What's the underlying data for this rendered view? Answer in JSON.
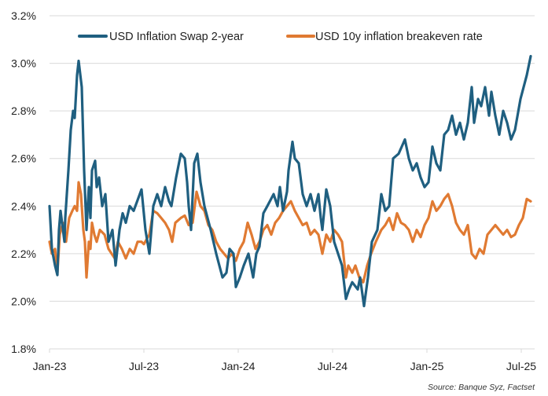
{
  "chart_data": {
    "type": "line",
    "title": "",
    "xlabel": "",
    "ylabel": "",
    "x_unit": "months since Jan-2023",
    "xlim": [
      0,
      31
    ],
    "ylim": [
      1.8,
      3.2
    ],
    "grid": "horizontal",
    "legend_position": "top",
    "yticks": [
      {
        "value": 1.8,
        "label": "1.8%"
      },
      {
        "value": 2.0,
        "label": "2.0%"
      },
      {
        "value": 2.2,
        "label": "2.2%"
      },
      {
        "value": 2.4,
        "label": "2.4%"
      },
      {
        "value": 2.6,
        "label": "2.6%"
      },
      {
        "value": 2.8,
        "label": "2.8%"
      },
      {
        "value": 3.0,
        "label": "3.0%"
      },
      {
        "value": 3.2,
        "label": "3.2%"
      }
    ],
    "xticks": [
      {
        "value": 0,
        "label": "Jan-23"
      },
      {
        "value": 6,
        "label": "Jul-23"
      },
      {
        "value": 12,
        "label": "Jan-24"
      },
      {
        "value": 18,
        "label": "Jul-24"
      },
      {
        "value": 24,
        "label": "Jan-25"
      },
      {
        "value": 30,
        "label": "Jul-25"
      }
    ],
    "series": [
      {
        "name": "USD Inflation Swap 2-year",
        "color": "#1f5f80",
        "points": [
          [
            0,
            2.4
          ],
          [
            0.15,
            2.22
          ],
          [
            0.35,
            2.15
          ],
          [
            0.5,
            2.11
          ],
          [
            0.6,
            2.3
          ],
          [
            0.7,
            2.38
          ],
          [
            0.95,
            2.25
          ],
          [
            1.0,
            2.35
          ],
          [
            1.2,
            2.55
          ],
          [
            1.35,
            2.72
          ],
          [
            1.5,
            2.8
          ],
          [
            1.6,
            2.77
          ],
          [
            1.75,
            2.95
          ],
          [
            1.85,
            3.01
          ],
          [
            2.05,
            2.9
          ],
          [
            2.2,
            2.55
          ],
          [
            2.35,
            2.3
          ],
          [
            2.5,
            2.48
          ],
          [
            2.6,
            2.35
          ],
          [
            2.7,
            2.55
          ],
          [
            2.9,
            2.59
          ],
          [
            3.0,
            2.48
          ],
          [
            3.15,
            2.52
          ],
          [
            3.35,
            2.4
          ],
          [
            3.55,
            2.45
          ],
          [
            3.75,
            2.25
          ],
          [
            4.0,
            2.3
          ],
          [
            4.2,
            2.15
          ],
          [
            4.45,
            2.3
          ],
          [
            4.65,
            2.37
          ],
          [
            4.85,
            2.33
          ],
          [
            5.1,
            2.4
          ],
          [
            5.35,
            2.38
          ],
          [
            5.85,
            2.47
          ],
          [
            6.1,
            2.3
          ],
          [
            6.35,
            2.2
          ],
          [
            6.6,
            2.4
          ],
          [
            6.85,
            2.45
          ],
          [
            7.1,
            2.4
          ],
          [
            7.35,
            2.48
          ],
          [
            7.6,
            2.42
          ],
          [
            7.75,
            2.4
          ],
          [
            8.05,
            2.52
          ],
          [
            8.35,
            2.62
          ],
          [
            8.6,
            2.6
          ],
          [
            8.75,
            2.5
          ],
          [
            8.85,
            2.4
          ],
          [
            9.0,
            2.3
          ],
          [
            9.2,
            2.58
          ],
          [
            9.4,
            2.62
          ],
          [
            9.6,
            2.5
          ],
          [
            9.85,
            2.4
          ],
          [
            10.25,
            2.3
          ],
          [
            10.6,
            2.2
          ],
          [
            11.0,
            2.1
          ],
          [
            11.25,
            2.12
          ],
          [
            11.45,
            2.22
          ],
          [
            11.7,
            2.2
          ],
          [
            11.85,
            2.06
          ],
          [
            12.1,
            2.1
          ],
          [
            12.35,
            2.15
          ],
          [
            12.65,
            2.2
          ],
          [
            12.95,
            2.1
          ],
          [
            13.15,
            2.2
          ],
          [
            13.35,
            2.23
          ],
          [
            13.6,
            2.37
          ],
          [
            13.85,
            2.4
          ],
          [
            14.25,
            2.45
          ],
          [
            14.5,
            2.4
          ],
          [
            14.65,
            2.48
          ],
          [
            14.85,
            2.38
          ],
          [
            15.1,
            2.46
          ],
          [
            15.2,
            2.55
          ],
          [
            15.45,
            2.67
          ],
          [
            15.6,
            2.6
          ],
          [
            15.85,
            2.58
          ],
          [
            16.1,
            2.45
          ],
          [
            16.35,
            2.4
          ],
          [
            16.6,
            2.45
          ],
          [
            16.85,
            2.38
          ],
          [
            17.1,
            2.45
          ],
          [
            17.25,
            2.35
          ],
          [
            17.35,
            2.3
          ],
          [
            17.6,
            2.47
          ],
          [
            17.85,
            2.4
          ],
          [
            18.1,
            2.25
          ],
          [
            18.35,
            2.2
          ],
          [
            18.6,
            2.15
          ],
          [
            18.85,
            2.01
          ],
          [
            19.05,
            2.05
          ],
          [
            19.25,
            2.08
          ],
          [
            19.6,
            2.05
          ],
          [
            19.75,
            2.1
          ],
          [
            20.0,
            1.98
          ],
          [
            20.25,
            2.1
          ],
          [
            20.5,
            2.25
          ],
          [
            20.85,
            2.3
          ],
          [
            21.1,
            2.45
          ],
          [
            21.35,
            2.38
          ],
          [
            21.6,
            2.4
          ],
          [
            21.85,
            2.6
          ],
          [
            22.2,
            2.62
          ],
          [
            22.6,
            2.68
          ],
          [
            22.85,
            2.6
          ],
          [
            23.1,
            2.55
          ],
          [
            23.35,
            2.58
          ],
          [
            23.6,
            2.52
          ],
          [
            23.85,
            2.48
          ],
          [
            24.1,
            2.5
          ],
          [
            24.35,
            2.65
          ],
          [
            24.6,
            2.58
          ],
          [
            24.85,
            2.55
          ],
          [
            25.1,
            2.7
          ],
          [
            25.35,
            2.72
          ],
          [
            25.6,
            2.78
          ],
          [
            25.85,
            2.7
          ],
          [
            26.1,
            2.75
          ],
          [
            26.35,
            2.68
          ],
          [
            26.6,
            2.75
          ],
          [
            26.85,
            2.9
          ],
          [
            27.0,
            2.75
          ],
          [
            27.25,
            2.85
          ],
          [
            27.45,
            2.82
          ],
          [
            27.7,
            2.9
          ],
          [
            27.95,
            2.78
          ],
          [
            28.1,
            2.88
          ],
          [
            28.35,
            2.78
          ],
          [
            28.6,
            2.7
          ],
          [
            28.85,
            2.8
          ],
          [
            29.1,
            2.75
          ],
          [
            29.35,
            2.68
          ],
          [
            29.6,
            2.72
          ],
          [
            29.95,
            2.85
          ],
          [
            30.35,
            2.95
          ],
          [
            30.6,
            3.03
          ]
        ]
      },
      {
        "name": "USD 10y inflation breakeven rate",
        "color": "#e07a32",
        "points": [
          [
            0,
            2.25
          ],
          [
            0.15,
            2.2
          ],
          [
            0.35,
            2.22
          ],
          [
            0.5,
            2.12
          ],
          [
            0.65,
            2.28
          ],
          [
            0.85,
            2.33
          ],
          [
            1.05,
            2.25
          ],
          [
            1.25,
            2.35
          ],
          [
            1.45,
            2.38
          ],
          [
            1.6,
            2.4
          ],
          [
            1.75,
            2.38
          ],
          [
            1.85,
            2.5
          ],
          [
            2.0,
            2.45
          ],
          [
            2.15,
            2.3
          ],
          [
            2.25,
            2.25
          ],
          [
            2.35,
            2.1
          ],
          [
            2.5,
            2.25
          ],
          [
            2.6,
            2.22
          ],
          [
            2.7,
            2.33
          ],
          [
            2.85,
            2.28
          ],
          [
            3.0,
            2.25
          ],
          [
            3.2,
            2.3
          ],
          [
            3.5,
            2.28
          ],
          [
            3.75,
            2.22
          ],
          [
            3.95,
            2.2
          ],
          [
            4.15,
            2.18
          ],
          [
            4.35,
            2.25
          ],
          [
            4.6,
            2.22
          ],
          [
            4.85,
            2.18
          ],
          [
            5.1,
            2.22
          ],
          [
            5.35,
            2.2
          ],
          [
            5.6,
            2.25
          ],
          [
            5.85,
            2.25
          ],
          [
            6.0,
            2.24
          ],
          [
            6.35,
            2.28
          ],
          [
            6.6,
            2.38
          ],
          [
            6.85,
            2.37
          ],
          [
            7.1,
            2.35
          ],
          [
            7.35,
            2.33
          ],
          [
            7.6,
            2.3
          ],
          [
            7.8,
            2.25
          ],
          [
            8.0,
            2.33
          ],
          [
            8.35,
            2.35
          ],
          [
            8.6,
            2.36
          ],
          [
            8.85,
            2.32
          ],
          [
            9.1,
            2.33
          ],
          [
            9.35,
            2.46
          ],
          [
            9.6,
            2.4
          ],
          [
            9.85,
            2.38
          ],
          [
            10.1,
            2.32
          ],
          [
            10.35,
            2.3
          ],
          [
            10.6,
            2.25
          ],
          [
            10.85,
            2.22
          ],
          [
            11.1,
            2.2
          ],
          [
            11.35,
            2.18
          ],
          [
            11.6,
            2.2
          ],
          [
            11.85,
            2.17
          ],
          [
            12.1,
            2.22
          ],
          [
            12.35,
            2.25
          ],
          [
            12.6,
            2.33
          ],
          [
            12.85,
            2.28
          ],
          [
            13.1,
            2.22
          ],
          [
            13.35,
            2.25
          ],
          [
            13.6,
            2.3
          ],
          [
            13.85,
            2.32
          ],
          [
            14.1,
            2.28
          ],
          [
            14.35,
            2.33
          ],
          [
            14.6,
            2.35
          ],
          [
            14.85,
            2.38
          ],
          [
            15.1,
            2.4
          ],
          [
            15.35,
            2.42
          ],
          [
            15.6,
            2.38
          ],
          [
            15.85,
            2.35
          ],
          [
            16.1,
            2.32
          ],
          [
            16.35,
            2.33
          ],
          [
            16.6,
            2.28
          ],
          [
            16.85,
            2.3
          ],
          [
            17.1,
            2.28
          ],
          [
            17.35,
            2.2
          ],
          [
            17.6,
            2.28
          ],
          [
            17.85,
            2.25
          ],
          [
            18.1,
            2.3
          ],
          [
            18.35,
            2.28
          ],
          [
            18.6,
            2.25
          ],
          [
            18.85,
            2.1
          ],
          [
            19.0,
            2.15
          ],
          [
            19.25,
            2.12
          ],
          [
            19.45,
            2.15
          ],
          [
            19.7,
            2.1
          ],
          [
            19.95,
            2.08
          ],
          [
            20.2,
            2.15
          ],
          [
            20.45,
            2.2
          ],
          [
            20.75,
            2.25
          ],
          [
            21.1,
            2.3
          ],
          [
            21.35,
            2.32
          ],
          [
            21.6,
            2.35
          ],
          [
            21.85,
            2.3
          ],
          [
            22.1,
            2.37
          ],
          [
            22.35,
            2.33
          ],
          [
            22.6,
            2.32
          ],
          [
            22.85,
            2.3
          ],
          [
            23.1,
            2.25
          ],
          [
            23.35,
            2.3
          ],
          [
            23.6,
            2.27
          ],
          [
            23.85,
            2.32
          ],
          [
            24.1,
            2.35
          ],
          [
            24.35,
            2.42
          ],
          [
            24.6,
            2.38
          ],
          [
            24.85,
            2.4
          ],
          [
            25.1,
            2.43
          ],
          [
            25.35,
            2.45
          ],
          [
            25.6,
            2.4
          ],
          [
            25.85,
            2.33
          ],
          [
            26.1,
            2.3
          ],
          [
            26.35,
            2.28
          ],
          [
            26.6,
            2.32
          ],
          [
            26.85,
            2.2
          ],
          [
            27.1,
            2.18
          ],
          [
            27.35,
            2.22
          ],
          [
            27.6,
            2.2
          ],
          [
            27.85,
            2.28
          ],
          [
            28.1,
            2.3
          ],
          [
            28.35,
            2.32
          ],
          [
            28.6,
            2.3
          ],
          [
            28.85,
            2.28
          ],
          [
            29.1,
            2.3
          ],
          [
            29.35,
            2.27
          ],
          [
            29.6,
            2.28
          ],
          [
            29.85,
            2.32
          ],
          [
            30.1,
            2.35
          ],
          [
            30.35,
            2.43
          ],
          [
            30.6,
            2.42
          ]
        ]
      }
    ],
    "source": "Source: Banque Syz, Factset"
  }
}
